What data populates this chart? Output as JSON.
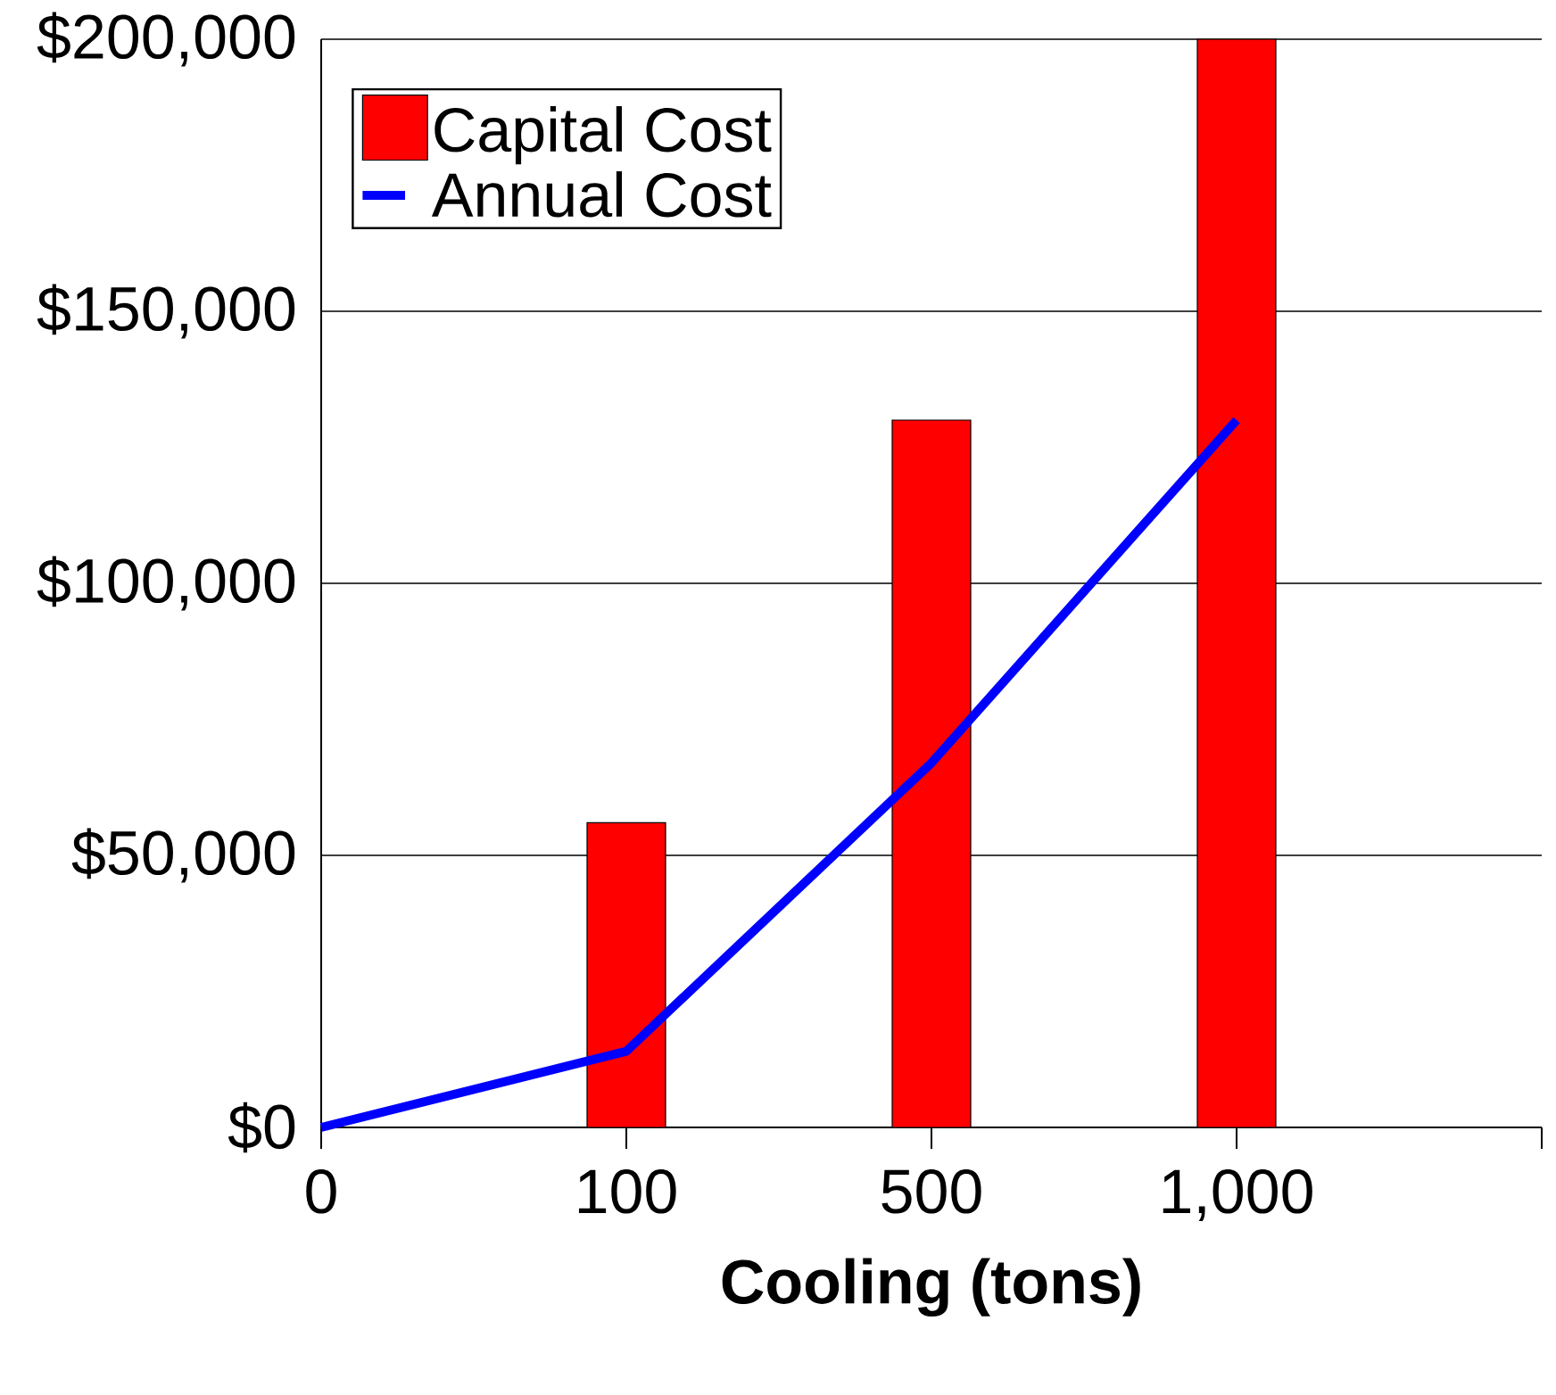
{
  "chart_data": {
    "type": "bar",
    "xlabel": "Cooling (tons)",
    "categories": [
      "0",
      "100",
      "500",
      "1,000",
      null
    ],
    "series": [
      {
        "name": "Capital Cost",
        "color": "#ff0000",
        "values": [
          null,
          56000,
          130000,
          200000,
          null
        ]
      },
      {
        "name": "Annual Cost",
        "type": "line",
        "color": "#0000ff",
        "values": [
          0,
          14000,
          67000,
          130000,
          null
        ]
      }
    ],
    "ylim": [
      0,
      200000
    ],
    "yticks": [
      {
        "value": 0,
        "label": "$0"
      },
      {
        "value": 50000,
        "label": "$50,000"
      },
      {
        "value": 100000,
        "label": "$100,000"
      },
      {
        "value": 150000,
        "label": "$150,000"
      },
      {
        "value": 200000,
        "label": "$200,000"
      }
    ],
    "grid": "y",
    "legend": "top left",
    "marker": "none",
    "line_style": "solid"
  }
}
